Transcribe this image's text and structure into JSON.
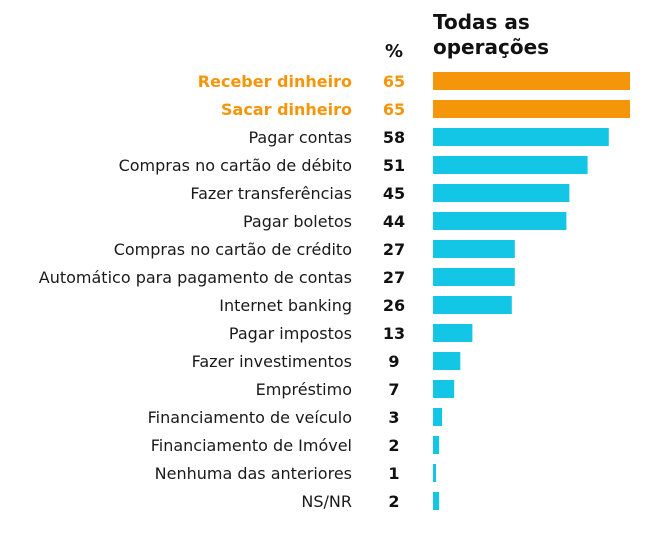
{
  "chart_data": {
    "type": "bar",
    "orientation": "horizontal",
    "column_headers": {
      "percent": "%",
      "series_title_line1": "Todas as",
      "series_title_line2": "operações"
    },
    "categories": [
      "Receber dinheiro",
      "Sacar dinheiro",
      "Pagar contas",
      "Compras no cartão de débito",
      "Fazer transferências",
      "Pagar boletos",
      "Compras no cartão de crédito",
      "Automático para pagamento de contas",
      "Internet banking",
      "Pagar impostos",
      "Fazer investimentos",
      "Empréstimo",
      "Financiamento de veículo",
      "Financiamento de Imóvel",
      "Nenhuma das anteriores",
      "NS/NR"
    ],
    "values": [
      65,
      65,
      58,
      51,
      45,
      44,
      27,
      27,
      26,
      13,
      9,
      7,
      3,
      2,
      1,
      2
    ],
    "highlighted": [
      true,
      true,
      false,
      false,
      false,
      false,
      false,
      false,
      false,
      false,
      false,
      false,
      false,
      false,
      false,
      false
    ],
    "xlim": [
      0,
      65
    ],
    "grid": false,
    "legend": "none",
    "colors": {
      "highlight": "#f5950a",
      "default": "#13c6e6"
    }
  }
}
